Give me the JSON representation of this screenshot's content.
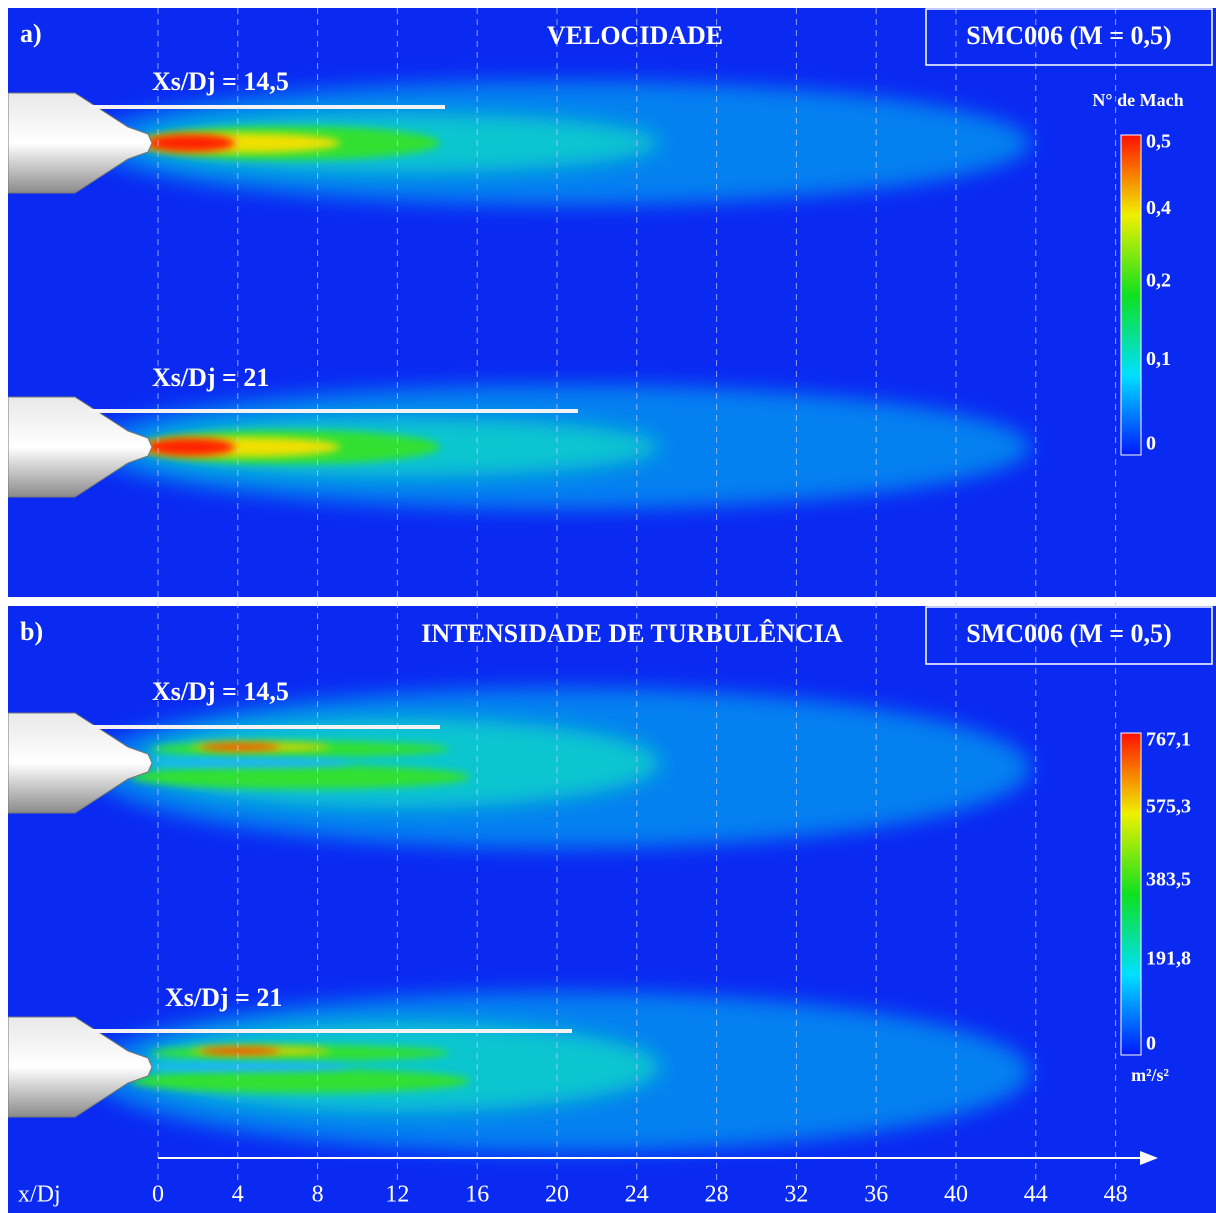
{
  "panels": [
    {
      "label": "a)",
      "title": "VELOCIDADE",
      "case": "SMC006 (M = 0,5)",
      "jets": [
        "Xs/Dj = 14,5",
        "Xs/Dj = 21"
      ],
      "colorbar": {
        "title": "N° de Mach",
        "ticks": [
          "0,5",
          "0,4",
          "0,2",
          "0,1",
          "0"
        ]
      }
    },
    {
      "label": "b)",
      "title": "INTENSIDADE DE TURBULÊNCIA",
      "case": "SMC006 (M = 0,5)",
      "jets": [
        "Xs/Dj = 14,5",
        "Xs/Dj = 21"
      ],
      "colorbar": {
        "ticks": [
          "767,1",
          "575,3",
          "383,5",
          "191,8",
          "0"
        ],
        "unit": "m²/s²"
      }
    }
  ],
  "x_axis": {
    "label": "x/Dj",
    "ticks": [
      0,
      4,
      8,
      12,
      16,
      20,
      24,
      28,
      32,
      36,
      40,
      44,
      48
    ]
  }
}
